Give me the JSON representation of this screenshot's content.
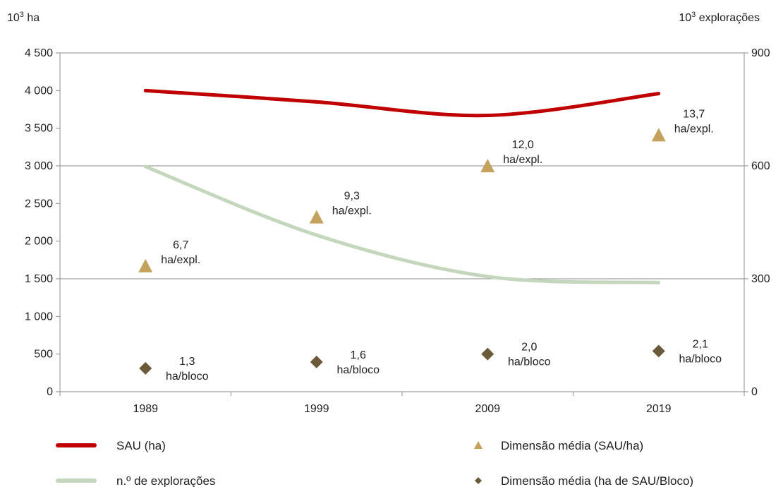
{
  "chart_data": {
    "type": "line",
    "categories": [
      "1989",
      "1999",
      "2009",
      "2019"
    ],
    "y_left": {
      "unit_base": "10",
      "unit_exp": "3",
      "unit_rest": " ha",
      "ticks": [
        "0",
        "500",
        "1 000",
        "1 500",
        "2 000",
        "2 500",
        "3 000",
        "3 500",
        "4 000",
        "4 500"
      ],
      "range": [
        0,
        4500
      ]
    },
    "y_right": {
      "unit_base": "10",
      "unit_exp": "3",
      "unit_rest": " explorações",
      "ticks": [
        "0",
        "300",
        "600",
        "900"
      ],
      "range": [
        0,
        900
      ]
    },
    "grid": "horizontal at right-axis ticks",
    "series": [
      {
        "name": "SAU (ha)",
        "axis": "left",
        "style": "line",
        "color": "#c00000",
        "values": [
          4000,
          3850,
          3670,
          3960
        ]
      },
      {
        "name": "n.º de explorações",
        "axis": "right",
        "style": "line",
        "color": "#c4d7bd",
        "values": [
          598,
          416,
          306,
          290
        ]
      },
      {
        "name": "Dimensão média (SAU/ha)",
        "axis": "left",
        "style": "triangle",
        "color": "#c4a25b",
        "values": [
          1660,
          2310,
          2990,
          3400
        ],
        "labels": [
          {
            "value": "6,7",
            "unit": "ha/expl."
          },
          {
            "value": "9,3",
            "unit": "ha/expl."
          },
          {
            "value": "12,0",
            "unit": "ha/expl."
          },
          {
            "value": "13,7",
            "unit": "ha/expl."
          }
        ]
      },
      {
        "name": "Dimensão média (ha de SAU/Bloco)",
        "axis": "left",
        "style": "diamond",
        "color": "#6b5a3a",
        "values": [
          310,
          395,
          500,
          540
        ],
        "labels": [
          {
            "value": "1,3",
            "unit": "ha/bloco"
          },
          {
            "value": "1,6",
            "unit": "ha/bloco"
          },
          {
            "value": "2,0",
            "unit": "ha/bloco"
          },
          {
            "value": "2,1",
            "unit": "ha/bloco"
          }
        ]
      }
    ],
    "legend": "bottom"
  }
}
